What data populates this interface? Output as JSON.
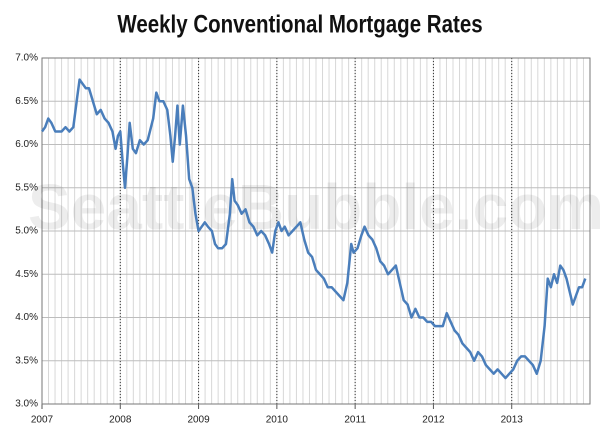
{
  "chart_data": {
    "type": "line",
    "title": "Weekly Conventional Mortgage Rates",
    "watermark": "SeattleBubble.com",
    "color": "#4a7ebb",
    "xlim": [
      2007,
      2014
    ],
    "xticks": [
      2007,
      2008,
      2009,
      2010,
      2011,
      2012,
      2013
    ],
    "ylim": [
      3,
      7
    ],
    "yticks": [
      {
        "value": 3,
        "label": "3.0%"
      },
      {
        "value": 3.5,
        "label": "3.5%"
      },
      {
        "value": 4,
        "label": "4.0%"
      },
      {
        "value": 4.5,
        "label": "4.5%"
      },
      {
        "value": 5,
        "label": "5.0%"
      },
      {
        "value": 5.5,
        "label": "5.5%"
      },
      {
        "value": 6,
        "label": "6.0%"
      },
      {
        "value": 6.5,
        "label": "6.5%"
      },
      {
        "value": 7,
        "label": "7.0%"
      }
    ],
    "grid": true,
    "x": [
      2007.0,
      2007.04,
      2007.08,
      2007.12,
      2007.17,
      2007.25,
      2007.3,
      2007.35,
      2007.4,
      2007.45,
      2007.48,
      2007.52,
      2007.56,
      2007.6,
      2007.65,
      2007.7,
      2007.75,
      2007.8,
      2007.85,
      2007.9,
      2007.94,
      2007.97,
      2008.0,
      2008.03,
      2008.06,
      2008.09,
      2008.12,
      2008.16,
      2008.2,
      2008.25,
      2008.3,
      2008.35,
      2008.42,
      2008.46,
      2008.5,
      2008.55,
      2008.6,
      2008.64,
      2008.67,
      2008.7,
      2008.73,
      2008.76,
      2008.8,
      2008.84,
      2008.88,
      2008.92,
      2008.96,
      2009.0,
      2009.04,
      2009.08,
      2009.12,
      2009.17,
      2009.21,
      2009.25,
      2009.3,
      2009.35,
      2009.4,
      2009.43,
      2009.46,
      2009.5,
      2009.55,
      2009.6,
      2009.65,
      2009.7,
      2009.75,
      2009.8,
      2009.85,
      2009.9,
      2009.94,
      2009.98,
      2010.02,
      2010.06,
      2010.1,
      2010.15,
      2010.2,
      2010.25,
      2010.3,
      2010.35,
      2010.4,
      2010.45,
      2010.5,
      2010.55,
      2010.6,
      2010.65,
      2010.7,
      2010.75,
      2010.8,
      2010.85,
      2010.9,
      2010.95,
      2010.98,
      2011.03,
      2011.08,
      2011.12,
      2011.17,
      2011.22,
      2011.27,
      2011.32,
      2011.37,
      2011.42,
      2011.47,
      2011.52,
      2011.57,
      2011.62,
      2011.67,
      2011.72,
      2011.77,
      2011.82,
      2011.87,
      2011.92,
      2011.97,
      2012.02,
      2012.07,
      2012.12,
      2012.17,
      2012.22,
      2012.27,
      2012.32,
      2012.37,
      2012.42,
      2012.47,
      2012.52,
      2012.57,
      2012.62,
      2012.67,
      2012.72,
      2012.77,
      2012.82,
      2012.87,
      2012.92,
      2012.97,
      2013.02,
      2013.07,
      2013.12,
      2013.17,
      2013.22,
      2013.27,
      2013.32,
      2013.37,
      2013.42,
      2013.46,
      2013.5,
      2013.54,
      2013.58,
      2013.62,
      2013.66,
      2013.7,
      2013.74,
      2013.78,
      2013.82,
      2013.86,
      2013.9,
      2013.94
    ],
    "values": [
      6.15,
      6.2,
      6.3,
      6.25,
      6.15,
      6.15,
      6.2,
      6.15,
      6.2,
      6.55,
      6.75,
      6.7,
      6.65,
      6.65,
      6.5,
      6.35,
      6.4,
      6.3,
      6.25,
      6.15,
      5.95,
      6.1,
      6.15,
      5.8,
      5.5,
      5.85,
      6.25,
      5.95,
      5.9,
      6.05,
      6.0,
      6.05,
      6.3,
      6.6,
      6.5,
      6.5,
      6.4,
      6.1,
      5.8,
      6.1,
      6.45,
      6.0,
      6.45,
      6.1,
      5.6,
      5.5,
      5.2,
      5.0,
      5.05,
      5.1,
      5.05,
      5.0,
      4.85,
      4.8,
      4.8,
      4.85,
      5.2,
      5.6,
      5.35,
      5.3,
      5.2,
      5.25,
      5.1,
      5.05,
      4.95,
      5.0,
      4.95,
      4.85,
      4.75,
      5.0,
      5.1,
      5.0,
      5.05,
      4.95,
      5.0,
      5.05,
      5.1,
      4.9,
      4.75,
      4.7,
      4.55,
      4.5,
      4.45,
      4.35,
      4.35,
      4.3,
      4.25,
      4.2,
      4.4,
      4.85,
      4.75,
      4.8,
      4.95,
      5.05,
      4.95,
      4.9,
      4.8,
      4.65,
      4.6,
      4.5,
      4.55,
      4.6,
      4.4,
      4.2,
      4.15,
      4.0,
      4.1,
      4.0,
      4.0,
      3.95,
      3.95,
      3.9,
      3.9,
      3.9,
      4.05,
      3.95,
      3.85,
      3.8,
      3.7,
      3.65,
      3.6,
      3.5,
      3.6,
      3.55,
      3.45,
      3.4,
      3.35,
      3.4,
      3.35,
      3.3,
      3.35,
      3.4,
      3.5,
      3.55,
      3.55,
      3.5,
      3.45,
      3.35,
      3.5,
      3.9,
      4.45,
      4.35,
      4.5,
      4.4,
      4.6,
      4.55,
      4.45,
      4.3,
      4.15,
      4.25,
      4.35,
      4.35,
      4.45
    ]
  }
}
